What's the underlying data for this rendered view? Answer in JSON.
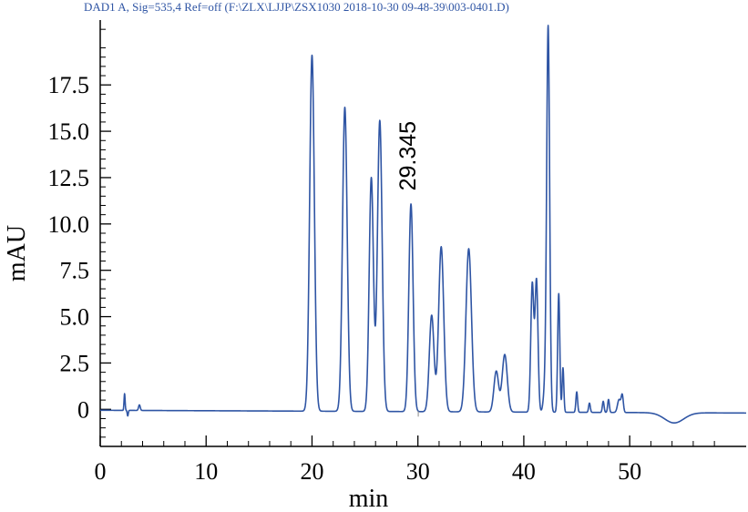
{
  "header": "DAD1 A, Sig=535,4 Ref=off (F:\\ZLX\\LJJP\\ZSX1030 2018-10-30 09-48-39\\003-0401.D)",
  "colors": {
    "trace": "#2f55a4",
    "axis": "#000000"
  },
  "chart_data": {
    "type": "line",
    "title": "",
    "xlabel": "min",
    "ylabel": "mAU",
    "xlim": [
      0,
      61
    ],
    "ylim": [
      -2,
      21
    ],
    "grid": false,
    "x_ticks": [
      0,
      10,
      20,
      30,
      40,
      50
    ],
    "x_tick_labels": [
      "0",
      "10",
      "20",
      "30",
      "40",
      "50"
    ],
    "y_ticks": [
      0,
      2.5,
      5.0,
      7.5,
      10.0,
      12.5,
      15.0,
      17.5
    ],
    "y_tick_labels": [
      "0",
      "2.5",
      "5.0",
      "7.5",
      "10.0",
      "12.5",
      "15.0",
      "17.5"
    ],
    "baseline": {
      "level": 0,
      "start": -0.05,
      "end": -0.2
    },
    "dip": {
      "center": 54.2,
      "depth": -0.55,
      "width": 0.9
    },
    "peaks": [
      {
        "rt": 2.3,
        "height": 0.9,
        "width": 0.05
      },
      {
        "rt": 2.6,
        "height": -0.3,
        "width": 0.05
      },
      {
        "rt": 3.7,
        "height": 0.3,
        "width": 0.08
      },
      {
        "rt": 20.0,
        "height": 19.2,
        "width": 0.22
      },
      {
        "rt": 23.1,
        "height": 16.4,
        "width": 0.22
      },
      {
        "rt": 25.6,
        "height": 12.6,
        "width": 0.2
      },
      {
        "rt": 26.4,
        "height": 15.7,
        "width": 0.22
      },
      {
        "rt": 29.345,
        "height": 11.2,
        "width": 0.2,
        "label": "29.345"
      },
      {
        "rt": 31.3,
        "height": 5.2,
        "width": 0.22
      },
      {
        "rt": 32.2,
        "height": 8.9,
        "width": 0.24
      },
      {
        "rt": 34.8,
        "height": 8.8,
        "width": 0.26
      },
      {
        "rt": 37.4,
        "height": 2.2,
        "width": 0.22
      },
      {
        "rt": 38.2,
        "height": 3.1,
        "width": 0.24
      },
      {
        "rt": 40.8,
        "height": 6.9,
        "width": 0.14
      },
      {
        "rt": 41.2,
        "height": 7.1,
        "width": 0.14
      },
      {
        "rt": 42.0,
        "height": 1.2,
        "width": 0.15
      },
      {
        "rt": 42.3,
        "height": 20.7,
        "width": 0.14
      },
      {
        "rt": 43.3,
        "height": 6.4,
        "width": 0.1
      },
      {
        "rt": 43.7,
        "height": 2.4,
        "width": 0.08
      },
      {
        "rt": 45.0,
        "height": 1.1,
        "width": 0.08
      },
      {
        "rt": 46.2,
        "height": 0.5,
        "width": 0.08
      },
      {
        "rt": 47.5,
        "height": 0.6,
        "width": 0.08
      },
      {
        "rt": 48.0,
        "height": 0.7,
        "width": 0.08
      },
      {
        "rt": 49.0,
        "height": 0.7,
        "width": 0.15
      },
      {
        "rt": 49.3,
        "height": 0.9,
        "width": 0.1
      }
    ]
  }
}
